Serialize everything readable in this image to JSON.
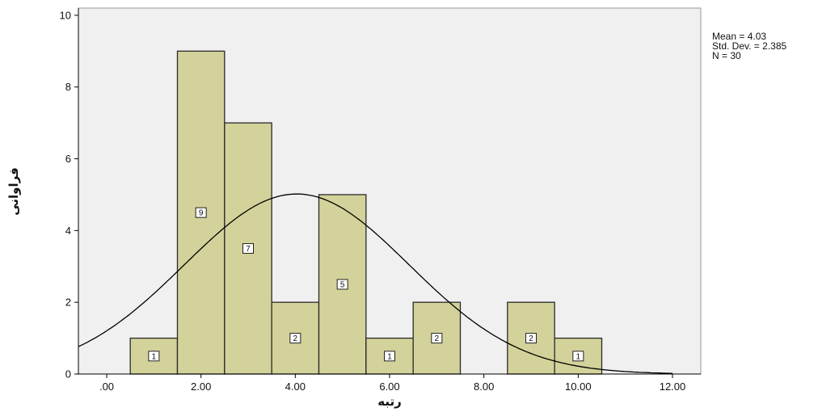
{
  "chart_data": {
    "type": "bar",
    "subtype": "histogram",
    "title": "",
    "xlabel": "رتبه",
    "ylabel": "فراوانی",
    "xlim": [
      -0.6,
      12.6
    ],
    "ylim": [
      0,
      10.2
    ],
    "x_ticks": [
      0,
      2,
      4,
      6,
      8,
      10,
      12
    ],
    "x_tick_labels": [
      ".00",
      "2.00",
      "4.00",
      "6.00",
      "8.00",
      "10.00",
      "12.00"
    ],
    "y_ticks": [
      0,
      2,
      4,
      6,
      8,
      10
    ],
    "y_tick_labels": [
      "0",
      "2",
      "4",
      "6",
      "8",
      "10"
    ],
    "bin_width": 1,
    "bins": [
      {
        "center": 1,
        "count": 1
      },
      {
        "center": 2,
        "count": 9
      },
      {
        "center": 3,
        "count": 7
      },
      {
        "center": 4,
        "count": 2
      },
      {
        "center": 5,
        "count": 5
      },
      {
        "center": 6,
        "count": 1
      },
      {
        "center": 7,
        "count": 2
      },
      {
        "center": 9,
        "count": 2
      },
      {
        "center": 10,
        "count": 1
      }
    ],
    "bar_labels": [
      "1",
      "9",
      "7",
      "2",
      "5",
      "1",
      "2",
      "2",
      "1"
    ],
    "normal_curve": {
      "mean": 4.03,
      "std_dev": 2.385,
      "n": 30
    },
    "stats_text": [
      "Mean = 4.03",
      "Std. Dev. = 2.385",
      "N = 30"
    ],
    "grid": false,
    "colors": {
      "plot_background": "#f0f0f0",
      "bar_fill": "#d3d29a",
      "bar_stroke": "#2a2a2a",
      "curve": "#000000"
    }
  }
}
